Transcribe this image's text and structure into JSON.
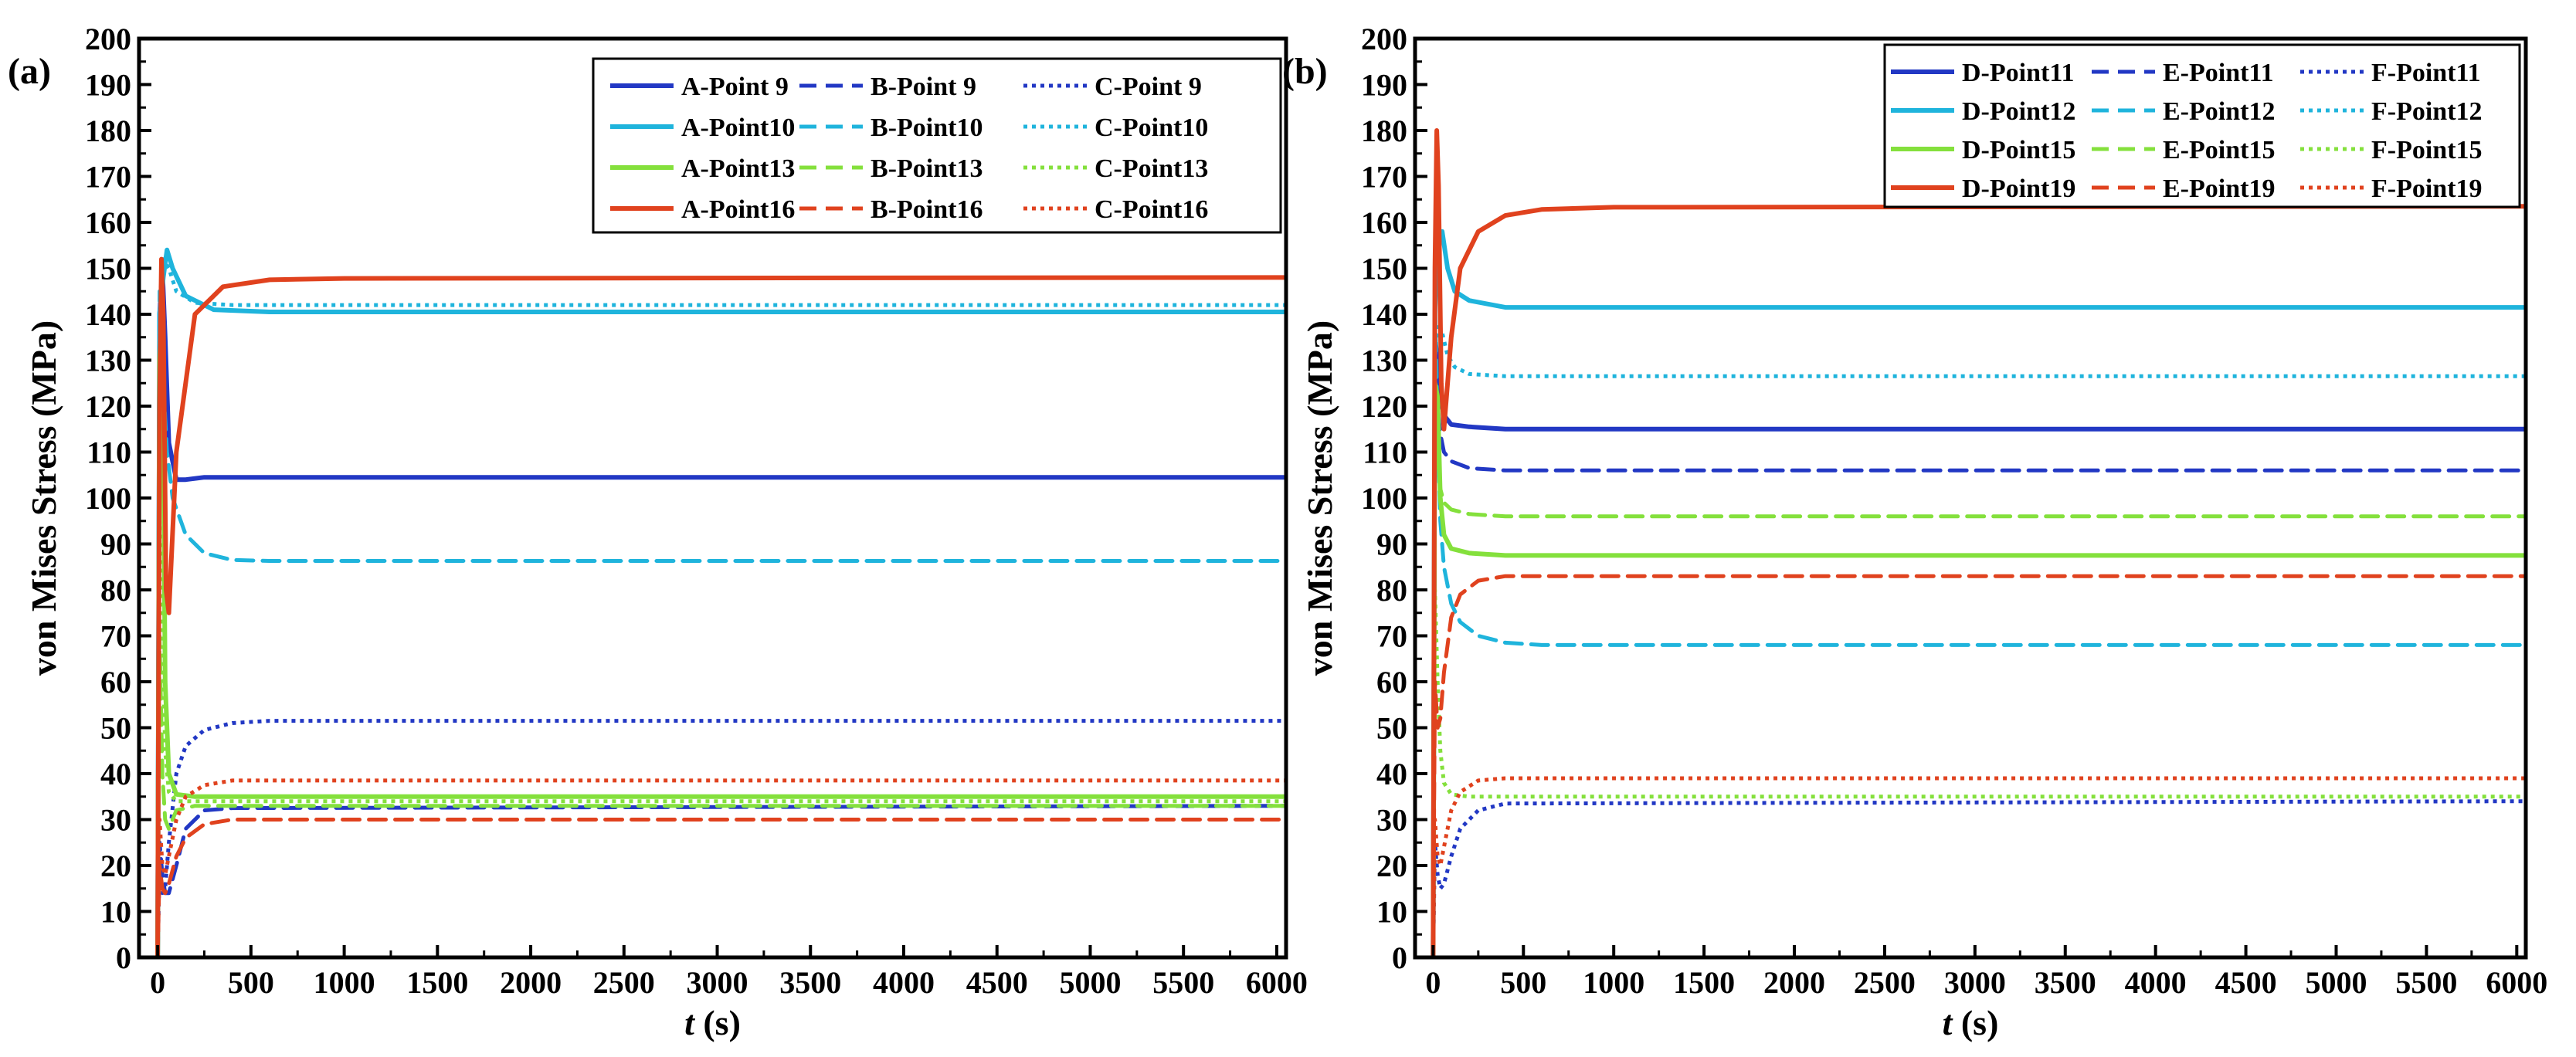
{
  "colors": {
    "blue": "#2238c4",
    "cyan": "#1fb4dc",
    "green": "#84e03c",
    "red": "#e0421e"
  },
  "chart_data": [
    {
      "type": "line",
      "panel_label": "(a)",
      "xlabel_italic": "t",
      "xlabel_unit": " (s)",
      "ylabel": "von Mises Stress (MPa)",
      "xlim": [
        -100,
        6050
      ],
      "ylim": [
        0,
        200
      ],
      "xticks": [
        0,
        500,
        1000,
        1500,
        2000,
        2500,
        3000,
        3500,
        4000,
        4500,
        5000,
        5500,
        6000
      ],
      "yticks": [
        0,
        10,
        20,
        30,
        40,
        50,
        60,
        70,
        80,
        90,
        100,
        110,
        120,
        130,
        140,
        150,
        160,
        170,
        180,
        190,
        200
      ],
      "legend_position": "top-right",
      "series": [
        {
          "name": "A-Point 9",
          "color": "blue",
          "style": "solid",
          "x": [
            0,
            10,
            25,
            40,
            60,
            100,
            150,
            250,
            400,
            6050
          ],
          "y": [
            0,
            140,
            150,
            135,
            112,
            104,
            104,
            104.5,
            104.5,
            104.5
          ]
        },
        {
          "name": "B-Point 9",
          "color": "blue",
          "style": "dashed",
          "x": [
            0,
            10,
            25,
            40,
            60,
            100,
            150,
            250,
            400,
            6050
          ],
          "y": [
            0,
            25,
            18,
            14,
            14,
            20,
            28,
            32,
            32.5,
            33
          ]
        },
        {
          "name": "C-Point 9",
          "color": "blue",
          "style": "dotted",
          "x": [
            0,
            10,
            25,
            40,
            60,
            100,
            150,
            250,
            400,
            600,
            6050
          ],
          "y": [
            0,
            20,
            14,
            15,
            25,
            40,
            46,
            49.5,
            51,
            51.5,
            51.5
          ]
        },
        {
          "name": "A-Point10",
          "color": "cyan",
          "style": "solid",
          "x": [
            0,
            10,
            30,
            50,
            80,
            150,
            300,
            600,
            6050
          ],
          "y": [
            0,
            140,
            148,
            154,
            150,
            144,
            141,
            140.5,
            140.5
          ]
        },
        {
          "name": "B-Point10",
          "color": "cyan",
          "style": "dashed",
          "x": [
            0,
            10,
            30,
            50,
            80,
            150,
            250,
            400,
            600,
            6050
          ],
          "y": [
            0,
            145,
            125,
            110,
            100,
            92,
            88,
            86.5,
            86.3,
            86.3
          ]
        },
        {
          "name": "C-Point10",
          "color": "cyan",
          "style": "dotted",
          "x": [
            0,
            10,
            30,
            60,
            100,
            200,
            400,
            6050
          ],
          "y": [
            0,
            140,
            152,
            150,
            145,
            142.5,
            142,
            142
          ]
        },
        {
          "name": "A-Point13",
          "color": "green",
          "style": "solid",
          "x": [
            0,
            10,
            25,
            40,
            60,
            100,
            200,
            6050
          ],
          "y": [
            0,
            130,
            142,
            60,
            40,
            35.5,
            35,
            35
          ]
        },
        {
          "name": "B-Point13",
          "color": "green",
          "style": "dashed",
          "x": [
            0,
            10,
            25,
            40,
            60,
            100,
            200,
            6050
          ],
          "y": [
            0,
            70,
            40,
            30,
            28,
            32,
            33,
            33
          ]
        },
        {
          "name": "C-Point13",
          "color": "green",
          "style": "dotted",
          "x": [
            0,
            10,
            25,
            40,
            60,
            100,
            200,
            6050
          ],
          "y": [
            0,
            95,
            70,
            45,
            36,
            34,
            34,
            34
          ]
        },
        {
          "name": "A-Point16",
          "color": "red",
          "style": "solid",
          "x": [
            0,
            10,
            20,
            30,
            45,
            60,
            100,
            200,
            350,
            600,
            1000,
            6050
          ],
          "y": [
            0,
            120,
            152,
            140,
            80,
            75,
            110,
            140,
            146,
            147.5,
            147.8,
            148
          ]
        },
        {
          "name": "B-Point16",
          "color": "red",
          "style": "dashed",
          "x": [
            0,
            10,
            25,
            40,
            60,
            100,
            150,
            250,
            400,
            6050
          ],
          "y": [
            0,
            20,
            15,
            14,
            16,
            22,
            26,
            29,
            30,
            30
          ]
        },
        {
          "name": "C-Point16",
          "color": "red",
          "style": "dotted",
          "x": [
            0,
            10,
            25,
            40,
            60,
            100,
            150,
            250,
            400,
            6050
          ],
          "y": [
            0,
            30,
            20,
            18,
            22,
            30,
            35,
            37.5,
            38.5,
            38.5
          ]
        }
      ]
    },
    {
      "type": "line",
      "panel_label": "(b)",
      "xlabel_italic": "t",
      "xlabel_unit": " (s)",
      "ylabel": "von Mises Stress (MPa)",
      "xlim": [
        -100,
        6050
      ],
      "ylim": [
        0,
        200
      ],
      "xticks": [
        0,
        500,
        1000,
        1500,
        2000,
        2500,
        3000,
        3500,
        4000,
        4500,
        5000,
        5500,
        6000
      ],
      "yticks": [
        0,
        10,
        20,
        30,
        40,
        50,
        60,
        70,
        80,
        90,
        100,
        110,
        120,
        130,
        140,
        150,
        160,
        170,
        180,
        190,
        200
      ],
      "legend_position": "top-right",
      "series": [
        {
          "name": "D-Point11",
          "color": "blue",
          "style": "solid",
          "x": [
            0,
            10,
            25,
            40,
            60,
            100,
            200,
            400,
            800,
            6050
          ],
          "y": [
            0,
            135,
            130,
            122,
            118,
            116,
            115.5,
            115,
            115,
            115
          ]
        },
        {
          "name": "E-Point11",
          "color": "blue",
          "style": "dashed",
          "x": [
            0,
            10,
            25,
            40,
            60,
            100,
            200,
            400,
            6050
          ],
          "y": [
            0,
            125,
            120,
            114,
            110,
            108,
            106.5,
            106,
            106
          ]
        },
        {
          "name": "F-Point11",
          "color": "blue",
          "style": "dotted",
          "x": [
            0,
            10,
            25,
            40,
            60,
            100,
            150,
            250,
            400,
            6050
          ],
          "y": [
            0,
            25,
            18,
            15,
            16,
            22,
            28,
            32,
            33.5,
            34
          ]
        },
        {
          "name": "D-Point12",
          "color": "cyan",
          "style": "solid",
          "x": [
            0,
            10,
            25,
            50,
            80,
            120,
            200,
            400,
            700,
            6050
          ],
          "y": [
            0,
            140,
            158,
            158,
            150,
            145,
            143,
            141.5,
            141.5,
            141.5
          ]
        },
        {
          "name": "E-Point12",
          "color": "cyan",
          "style": "dashed",
          "x": [
            0,
            10,
            25,
            40,
            60,
            100,
            150,
            250,
            400,
            600,
            6050
          ],
          "y": [
            0,
            145,
            115,
            95,
            85,
            77,
            73,
            70,
            68.5,
            68,
            68
          ]
        },
        {
          "name": "F-Point12",
          "color": "cyan",
          "style": "dotted",
          "x": [
            0,
            10,
            25,
            50,
            80,
            120,
            200,
            400,
            6050
          ],
          "y": [
            0,
            130,
            138,
            136,
            131,
            128.5,
            127,
            126.5,
            126.5
          ]
        },
        {
          "name": "D-Point15",
          "color": "green",
          "style": "solid",
          "x": [
            0,
            10,
            25,
            40,
            60,
            100,
            200,
            400,
            6050
          ],
          "y": [
            0,
            125,
            122,
            100,
            92,
            89,
            88,
            87.5,
            87.5
          ]
        },
        {
          "name": "E-Point15",
          "color": "green",
          "style": "dashed",
          "x": [
            0,
            10,
            25,
            40,
            60,
            100,
            200,
            400,
            6050
          ],
          "y": [
            0,
            115,
            110,
            102,
            99,
            97.5,
            96.5,
            96,
            96
          ]
        },
        {
          "name": "F-Point15",
          "color": "green",
          "style": "dotted",
          "x": [
            0,
            10,
            25,
            40,
            60,
            100,
            200,
            400,
            6050
          ],
          "y": [
            0,
            80,
            60,
            45,
            38,
            35.5,
            35,
            35,
            35
          ]
        },
        {
          "name": "D-Point19",
          "color": "red",
          "style": "solid",
          "x": [
            0,
            10,
            20,
            30,
            45,
            60,
            100,
            150,
            250,
            400,
            600,
            1000,
            6050
          ],
          "y": [
            0,
            150,
            180,
            168,
            125,
            115,
            135,
            150,
            158,
            161.5,
            162.8,
            163.3,
            163.5
          ]
        },
        {
          "name": "E-Point19",
          "color": "red",
          "style": "dashed",
          "x": [
            0,
            10,
            25,
            40,
            60,
            100,
            150,
            250,
            400,
            6050
          ],
          "y": [
            0,
            60,
            50,
            52,
            62,
            74,
            79,
            82,
            83,
            83
          ]
        },
        {
          "name": "F-Point19",
          "color": "red",
          "style": "dotted",
          "x": [
            0,
            10,
            25,
            40,
            60,
            100,
            150,
            250,
            400,
            6050
          ],
          "y": [
            0,
            30,
            22,
            20,
            24,
            32,
            36,
            38.5,
            39,
            39
          ]
        }
      ]
    }
  ]
}
